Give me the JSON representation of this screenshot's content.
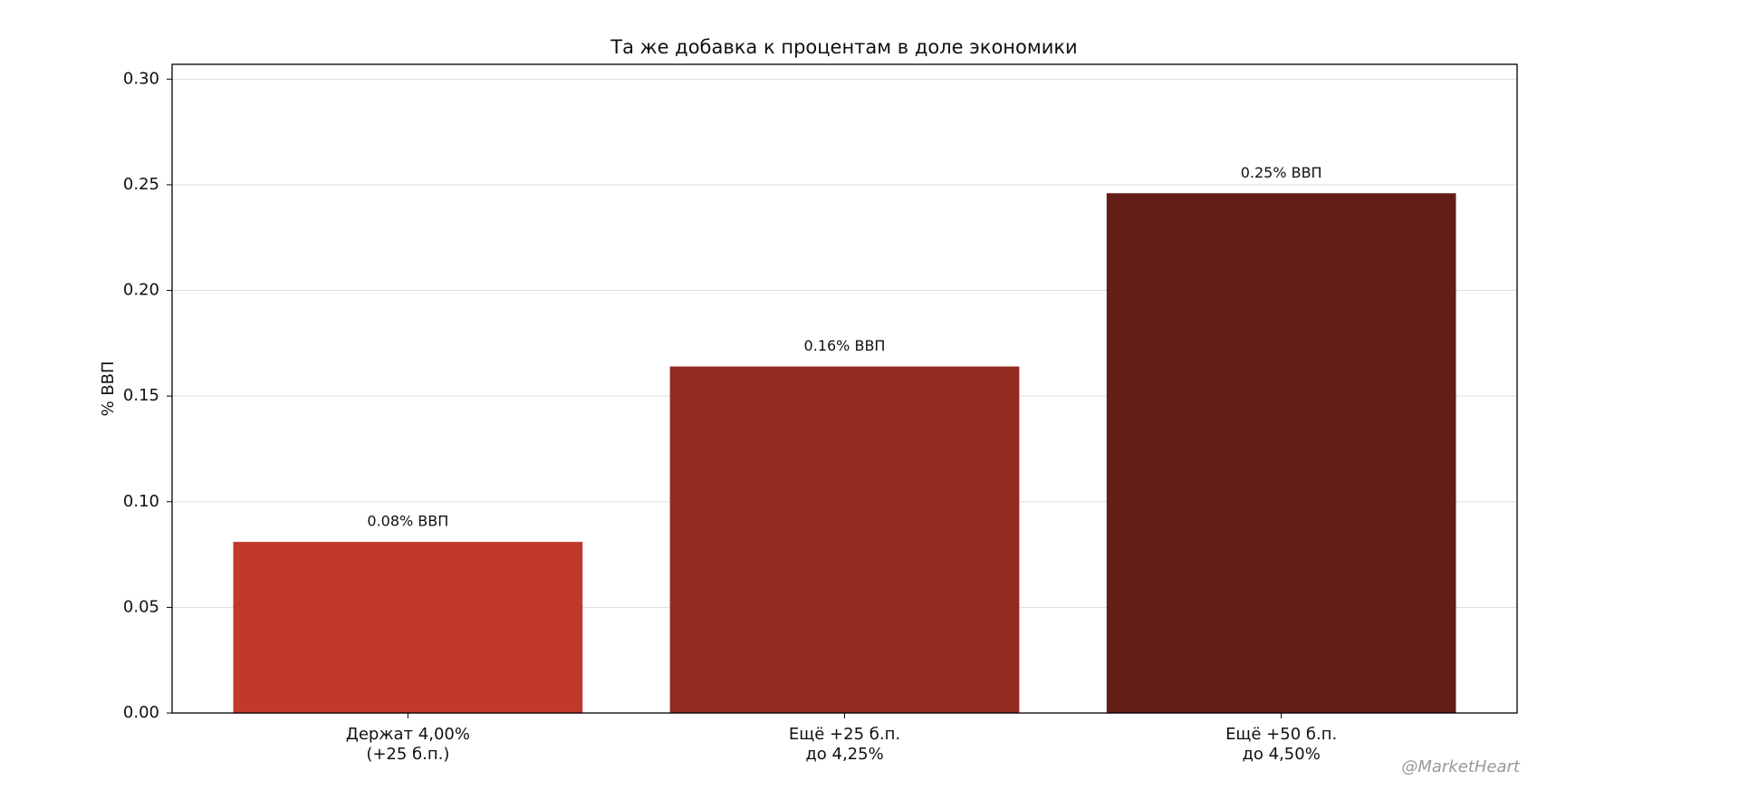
{
  "chart_data": {
    "type": "bar",
    "title": "Та же добавка к процентам в доле экономики",
    "ylabel": "% ВВП",
    "categories": [
      "Держат 4,00%\n(+25 б.п.)",
      "Ещё +25 б.п.\nдо 4,25%",
      "Ещё +50 б.п.\nдо 4,50%"
    ],
    "values": [
      0.081,
      0.164,
      0.246
    ],
    "value_labels": [
      "0.08% ВВП",
      "0.16% ВВП",
      "0.25% ВВП"
    ],
    "colors": [
      "#c0392b",
      "#922b21",
      "#641e16"
    ],
    "ylim": [
      0,
      0.307
    ],
    "yticks": [
      {
        "value": 0,
        "label": "0.00"
      },
      0.05,
      {
        "value": 0.1,
        "label": "0.10"
      },
      0.15,
      {
        "value": 0.2,
        "label": "0.20"
      },
      0.25,
      {
        "value": 0.3,
        "label": "0.30"
      }
    ],
    "grid": true,
    "watermark": "@MarketHeart"
  }
}
